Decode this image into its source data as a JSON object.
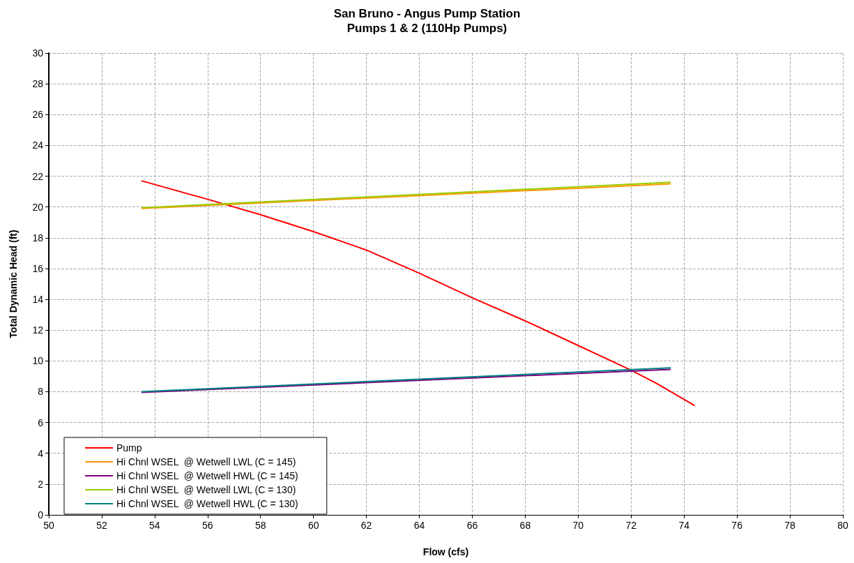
{
  "chart_data": {
    "type": "line",
    "title": "San Bruno - Angus Pump Station",
    "subtitle": "Pumps 1 & 2 (110Hp Pumps)",
    "xlabel": "Flow (cfs)",
    "ylabel": "Total Dynamic Head (ft)",
    "xlim": [
      50,
      80
    ],
    "xticks": [
      50,
      52,
      54,
      56,
      58,
      60,
      62,
      64,
      66,
      68,
      70,
      72,
      74,
      76,
      78,
      80
    ],
    "ylim": [
      0,
      30
    ],
    "yticks": [
      0,
      2,
      4,
      6,
      8,
      10,
      12,
      14,
      16,
      18,
      20,
      22,
      24,
      26,
      28,
      30
    ],
    "grid": true,
    "legend": "bottom left",
    "marker": "none",
    "line_style": "solid",
    "series": [
      {
        "name": "Pump",
        "color": "#ff0000",
        "x": [
          53.5,
          56,
          58,
          60,
          62,
          64,
          66,
          68,
          70,
          72,
          73,
          74.4
        ],
        "values": [
          21.7,
          20.5,
          19.5,
          18.4,
          17.2,
          15.7,
          14.1,
          12.6,
          11.0,
          9.4,
          8.5,
          7.1
        ]
      },
      {
        "name": "Hi Chnl WSEL  @ Wetwell LWL (C = 145)",
        "color": "#ff9900",
        "x": [
          53.5,
          73.5
        ],
        "values": [
          19.9,
          21.5
        ]
      },
      {
        "name": "Hi Chnl WSEL  @ Wetwell HWL (C = 145)",
        "color": "#800080",
        "x": [
          53.5,
          73.5
        ],
        "values": [
          7.95,
          9.45
        ]
      },
      {
        "name": "Hi Chnl WSEL  @ Wetwell LWL (C = 130)",
        "color": "#99cc00",
        "x": [
          53.5,
          73.5
        ],
        "values": [
          19.95,
          21.6
        ]
      },
      {
        "name": "Hi Chnl WSEL  @ Wetwell HWL (C = 130)",
        "color": "#008080",
        "x": [
          53.5,
          73.5
        ],
        "values": [
          8.0,
          9.55
        ]
      }
    ]
  }
}
